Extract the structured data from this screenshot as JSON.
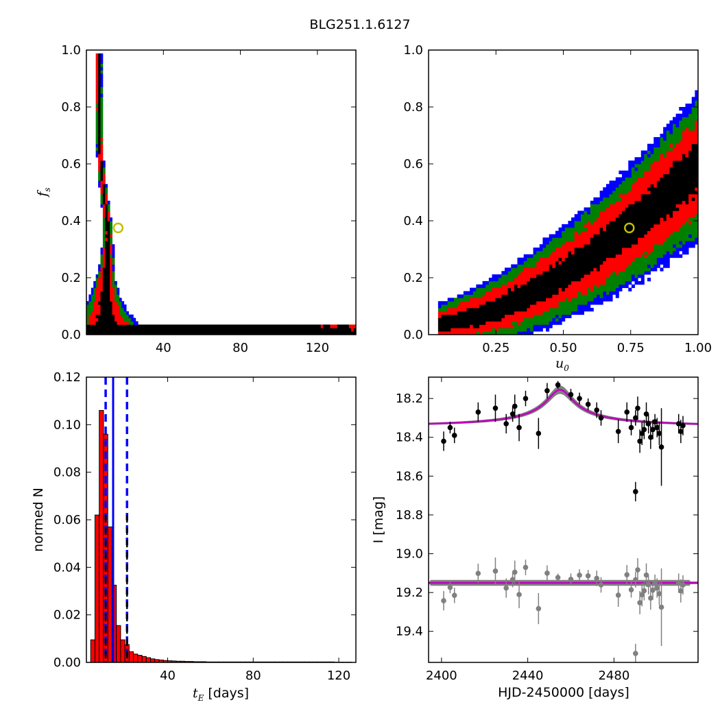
{
  "figure": {
    "title": "BLG251.1.6127"
  },
  "colors": {
    "sigma3": "#0000ff",
    "sigma2": "#008000",
    "sigma1": "#ff0000",
    "core": "#000000",
    "best_fit_marker": "#bfbf00",
    "hist_bar": "#ff0000",
    "median_line": "#0000ff",
    "model_line": "#bf00bf",
    "model_band": "#808080",
    "residual_points": "#808080"
  },
  "chart_data": [
    {
      "id": "tE-fs",
      "type": "heatmap",
      "title": "",
      "xlabel": "",
      "ylabel": "f_s",
      "ylabel_main": "f",
      "ylabel_sub": "s",
      "xlim": [
        0,
        140
      ],
      "ylim": [
        0.0,
        1.0
      ],
      "xticks": [
        40,
        80,
        120
      ],
      "yticks": [
        0.0,
        0.2,
        0.4,
        0.6,
        0.8,
        1.0
      ],
      "ytick_labels": [
        "0.0",
        "0.2",
        "0.4",
        "0.6",
        "0.8",
        "1.0"
      ],
      "levels": [
        "sigma3",
        "sigma2",
        "sigma1",
        "core"
      ],
      "best_fit": {
        "x": 16.5,
        "y": 0.375
      }
    },
    {
      "id": "u0-fs",
      "type": "heatmap",
      "title": "",
      "xlabel": "u_0",
      "xlabel_main": "u",
      "xlabel_sub": "0",
      "ylabel": "",
      "xlim": [
        0.0,
        1.0
      ],
      "ylim": [
        0.0,
        1.0
      ],
      "xticks": [
        0.25,
        0.5,
        0.75,
        1.0
      ],
      "xtick_labels": [
        "0.25",
        "0.50",
        "0.75",
        "1.00"
      ],
      "yticks": [
        0.0,
        0.2,
        0.4,
        0.6,
        0.8,
        1.0
      ],
      "ytick_labels": [
        "0.0",
        "0.2",
        "0.4",
        "0.6",
        "0.8",
        "1.0"
      ],
      "levels": [
        "sigma3",
        "sigma2",
        "sigma1",
        "core"
      ],
      "best_fit": {
        "x": 0.745,
        "y": 0.375
      }
    },
    {
      "id": "tE-hist",
      "type": "bar",
      "title": "",
      "xlabel": "t_E [days]",
      "xlabel_main": "t",
      "xlabel_sub": "E",
      "xlabel_unit": "[days]",
      "ylabel": "normed N",
      "xlim": [
        2,
        128
      ],
      "ylim": [
        0.0,
        0.12
      ],
      "xticks": [
        40,
        80,
        120
      ],
      "yticks": [
        0.0,
        0.02,
        0.04,
        0.06,
        0.08,
        0.1,
        0.12
      ],
      "ytick_labels": [
        "0.00",
        "0.02",
        "0.04",
        "0.06",
        "0.08",
        "0.10",
        "0.12"
      ],
      "bin_start": 4,
      "bin_width": 2,
      "values": [
        0.0095,
        0.062,
        0.106,
        0.096,
        0.057,
        0.0325,
        0.0155,
        0.0095,
        0.0075,
        0.0045,
        0.0035,
        0.003,
        0.0025,
        0.002,
        0.0015,
        0.0012,
        0.001,
        0.0008,
        0.0007,
        0.0006,
        0.0005,
        0.0005,
        0.0004,
        0.0004,
        0.0003,
        0.0003,
        0.0003,
        0.0002,
        0.0002,
        0.0002,
        0.0002,
        0.0002,
        0.0002,
        0.0002,
        0.0002,
        0.0002,
        0.0002,
        0.0002,
        0.0002,
        0.0002,
        0.0002,
        0.0002,
        0.0002,
        0.0002,
        0.0002,
        0.0002,
        0.0002,
        0.0002,
        0.0002,
        0.0002,
        0.0002,
        0.0002,
        0.0002,
        0.0002,
        0.0002,
        0.0002,
        0.0002,
        0.0001,
        0.0001,
        0.0001,
        0.0001
      ],
      "median": 14.5,
      "interval": [
        11.0,
        21.0
      ]
    },
    {
      "id": "lightcurve",
      "type": "scatter",
      "title": "",
      "xlabel": "HJD-2450000 [days]",
      "ylabel": "I [mag]",
      "xlim": [
        2394,
        2519
      ],
      "ylim": [
        19.56,
        18.09
      ],
      "xticks": [
        2400,
        2440,
        2480
      ],
      "yticks": [
        18.2,
        18.4,
        18.6,
        18.8,
        19.0,
        19.2,
        19.4
      ],
      "ytick_labels": [
        "18.2",
        "18.4",
        "18.6",
        "18.8",
        "19.0",
        "19.2",
        "19.4"
      ],
      "model": {
        "baseline": 18.35,
        "t0": 2455,
        "amplitude": 0.195,
        "tau": 6.2
      },
      "residual_offset": 0.8,
      "points": [
        {
          "x": 2401,
          "y": 18.42,
          "err": 0.05
        },
        {
          "x": 2404,
          "y": 18.35,
          "err": 0.03
        },
        {
          "x": 2406,
          "y": 18.39,
          "err": 0.04
        },
        {
          "x": 2417,
          "y": 18.27,
          "err": 0.05
        },
        {
          "x": 2425,
          "y": 18.25,
          "err": 0.07
        },
        {
          "x": 2430,
          "y": 18.33,
          "err": 0.05
        },
        {
          "x": 2433,
          "y": 18.28,
          "err": 0.04
        },
        {
          "x": 2434,
          "y": 18.24,
          "err": 0.06
        },
        {
          "x": 2436,
          "y": 18.35,
          "err": 0.07
        },
        {
          "x": 2439,
          "y": 18.2,
          "err": 0.04
        },
        {
          "x": 2445,
          "y": 18.38,
          "err": 0.08
        },
        {
          "x": 2449,
          "y": 18.16,
          "err": 0.04
        },
        {
          "x": 2454,
          "y": 18.13,
          "err": 0.02
        },
        {
          "x": 2460,
          "y": 18.18,
          "err": 0.03
        },
        {
          "x": 2464,
          "y": 18.2,
          "err": 0.03
        },
        {
          "x": 2468,
          "y": 18.23,
          "err": 0.03
        },
        {
          "x": 2472,
          "y": 18.26,
          "err": 0.04
        },
        {
          "x": 2474,
          "y": 18.3,
          "err": 0.04
        },
        {
          "x": 2482,
          "y": 18.37,
          "err": 0.06
        },
        {
          "x": 2486,
          "y": 18.27,
          "err": 0.05
        },
        {
          "x": 2488,
          "y": 18.35,
          "err": 0.04
        },
        {
          "x": 2490,
          "y": 18.3,
          "err": 0.04
        },
        {
          "x": 2491,
          "y": 18.25,
          "err": 0.06
        },
        {
          "x": 2492,
          "y": 18.42,
          "err": 0.06
        },
        {
          "x": 2493,
          "y": 18.38,
          "err": 0.06
        },
        {
          "x": 2494,
          "y": 18.36,
          "err": 0.05
        },
        {
          "x": 2495,
          "y": 18.28,
          "err": 0.06
        },
        {
          "x": 2496,
          "y": 18.33,
          "err": 0.05
        },
        {
          "x": 2497,
          "y": 18.4,
          "err": 0.06
        },
        {
          "x": 2498,
          "y": 18.36,
          "err": 0.05
        },
        {
          "x": 2499,
          "y": 18.32,
          "err": 0.04
        },
        {
          "x": 2500,
          "y": 18.35,
          "err": 0.05
        },
        {
          "x": 2501,
          "y": 18.38,
          "err": 0.06
        },
        {
          "x": 2502,
          "y": 18.45,
          "err": 0.2
        },
        {
          "x": 2510,
          "y": 18.33,
          "err": 0.05
        },
        {
          "x": 2511,
          "y": 18.37,
          "err": 0.06
        },
        {
          "x": 2512,
          "y": 18.34,
          "err": 0.05
        },
        {
          "x": 2490,
          "y": 18.68,
          "err": 0.05
        }
      ]
    }
  ]
}
